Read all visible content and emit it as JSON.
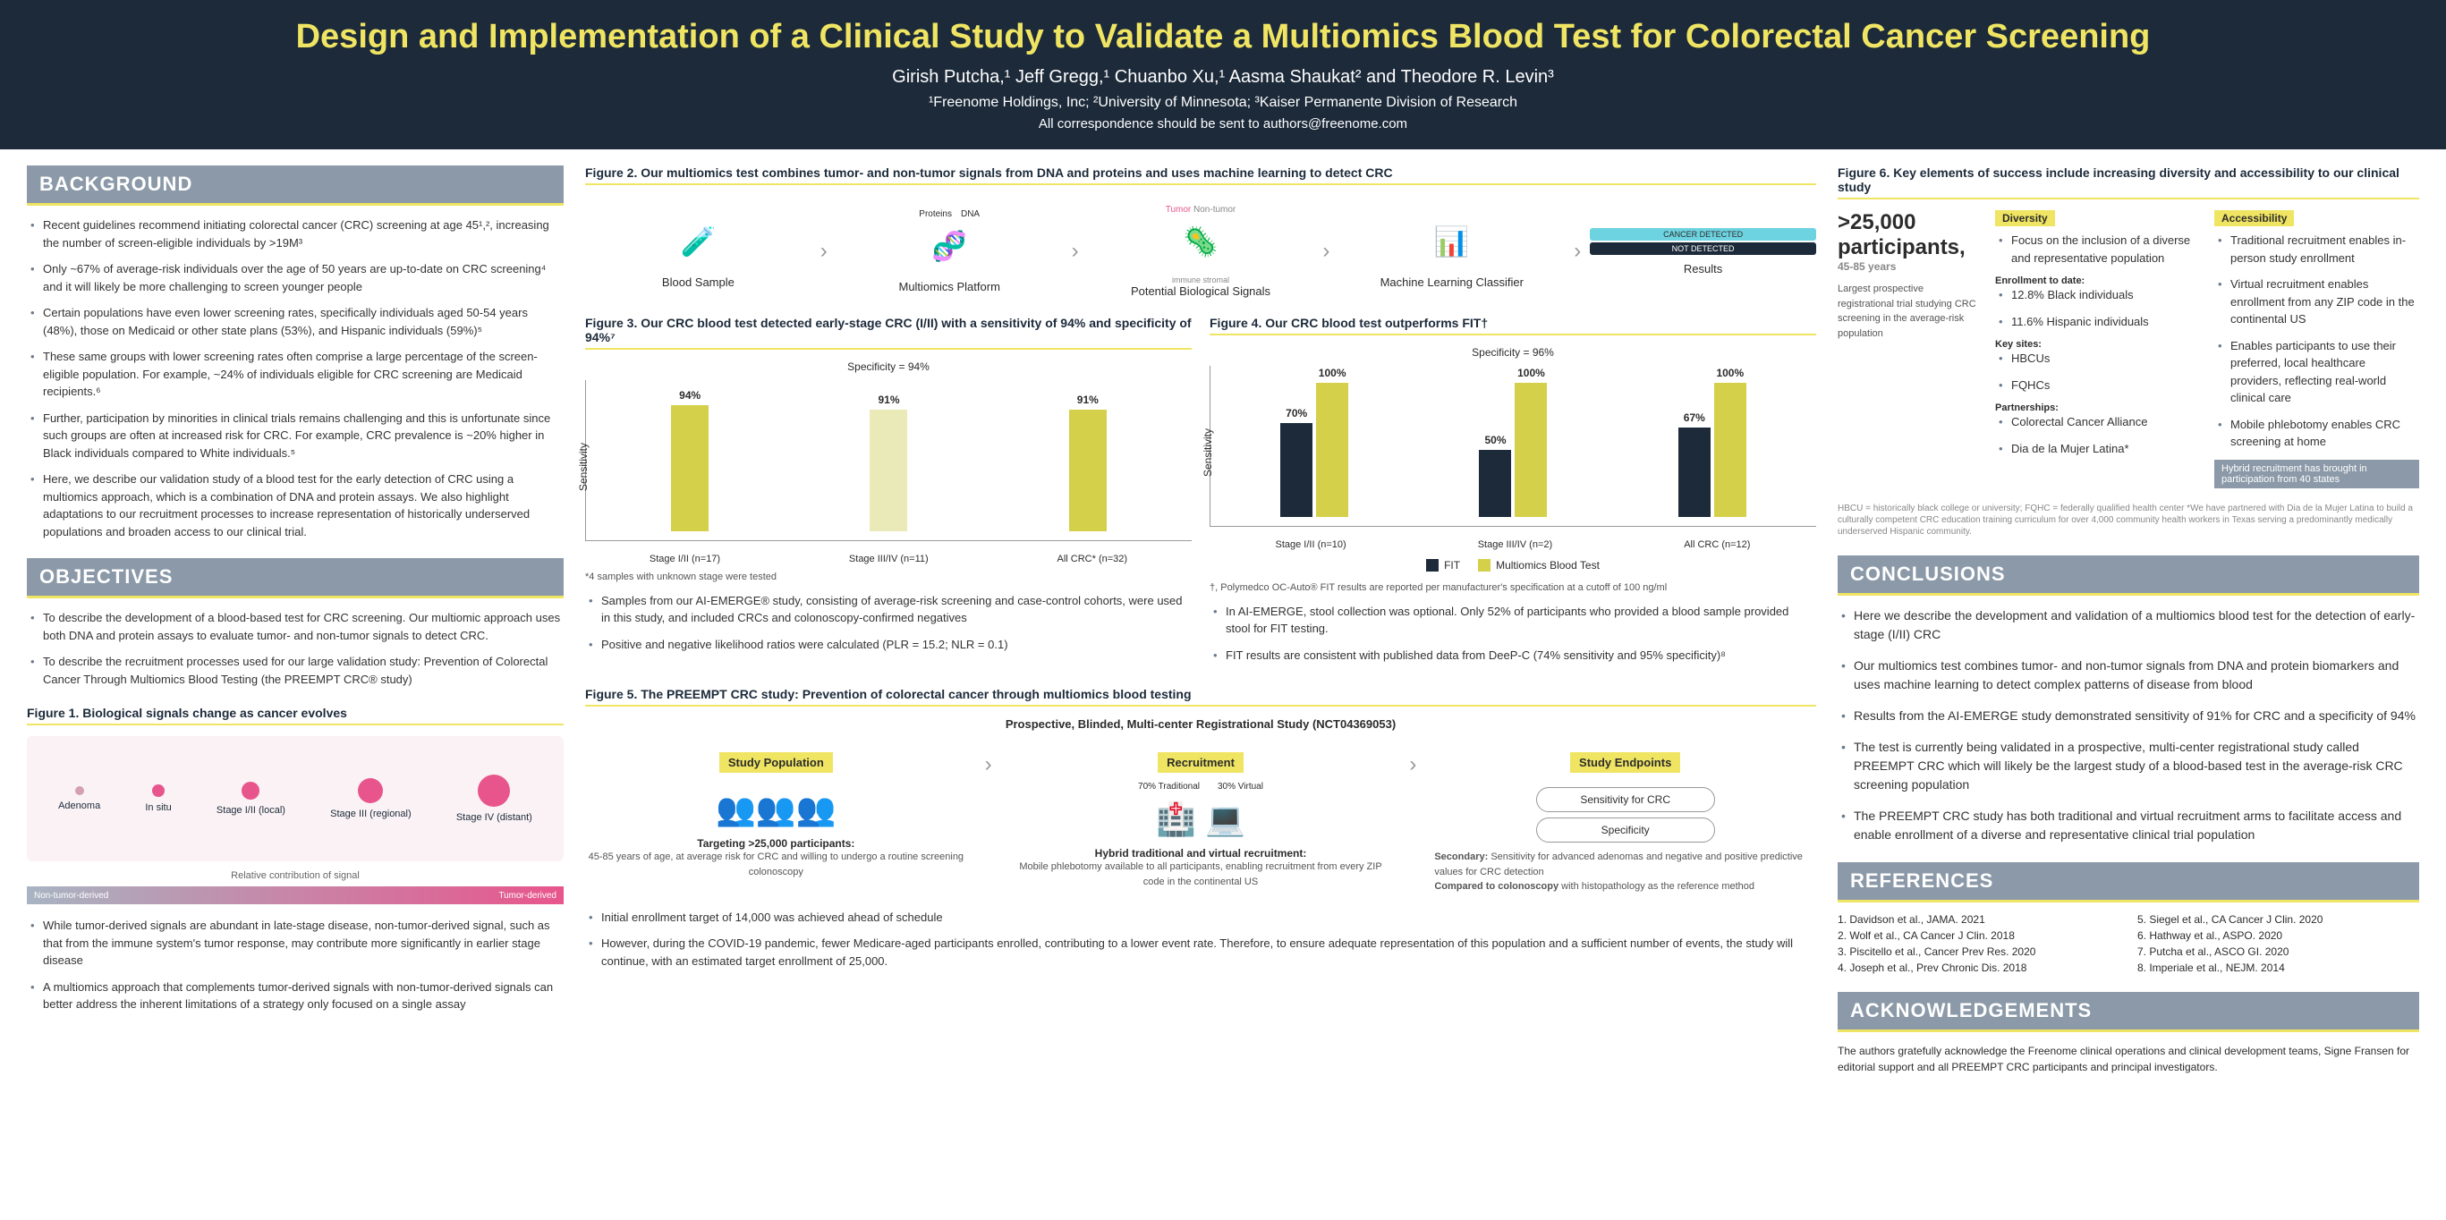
{
  "header": {
    "title": "Design and Implementation of a Clinical Study to Validate a Multiomics Blood Test for Colorectal Cancer Screening",
    "authors": "Girish Putcha,¹ Jeff Gregg,¹ Chuanbo Xu,¹ Aasma Shaukat² and Theodore R. Levin³",
    "affiliations": "¹Freenome Holdings, Inc; ²University of Minnesota; ³Kaiser Permanente Division of Research",
    "correspondence": "All correspondence should be sent to authors@freenome.com"
  },
  "sections": {
    "background": "BACKGROUND",
    "objectives": "OBJECTIVES",
    "conclusions": "CONCLUSIONS",
    "references": "REFERENCES",
    "ack": "ACKNOWLEDGEMENTS"
  },
  "background": [
    "Recent guidelines recommend initiating colorectal cancer (CRC) screening at age 45¹,², increasing the number of screen-eligible individuals by >19M³",
    "Only ~67% of average-risk individuals over the age of 50 years are up-to-date on CRC screening⁴ and it will likely be more challenging to screen younger people",
    "Certain populations have even lower screening rates, specifically individuals aged 50-54 years (48%), those on Medicaid or other state plans (53%), and Hispanic individuals (59%)⁵",
    "These same groups with lower screening rates often comprise a large percentage of the screen-eligible population. For example, ~24% of individuals eligible for CRC screening are Medicaid recipients.⁶",
    "Further, participation by minorities in clinical trials remains challenging and this is unfortunate since such groups are often at increased risk for CRC. For example, CRC prevalence is ~20% higher in Black individuals compared to White individuals.⁵",
    "Here, we describe our validation study of a blood test for the early detection of CRC using a multiomics approach, which is a combination of DNA and protein assays. We also highlight adaptations to our recruitment processes to increase representation of historically underserved populations and broaden access to our clinical trial."
  ],
  "objectives": [
    "To describe the development of a blood-based test for CRC screening. Our multiomic approach uses both DNA and protein assays to evaluate tumor- and non-tumor signals to detect CRC.",
    "To describe the recruitment processes used for our large validation study: Prevention of Colorectal Cancer Through Multiomics Blood Testing (the PREEMPT CRC® study)"
  ],
  "fig1": {
    "title": "Figure 1. Biological signals change as cancer evolves",
    "stages": [
      "Adenoma",
      "In situ",
      "Stage I/II (local)",
      "Stage III (regional)",
      "Stage IV (distant)"
    ],
    "signal_caption": "Relative contribution of signal",
    "non_tumor": "Non-tumor-derived",
    "tumor": "Tumor-derived",
    "notes": [
      "While tumor-derived signals are abundant in late-stage disease, non-tumor-derived signal, such as that from the immune system's tumor response, may contribute more significantly in earlier stage disease",
      "A multiomics approach that complements tumor-derived signals with non-tumor-derived signals can better address the inherent limitations of a strategy only focused on a single assay"
    ]
  },
  "fig2": {
    "title": "Figure 2. Our multiomics test combines tumor- and non-tumor signals from DNA and proteins and uses machine learning to detect CRC",
    "steps": [
      "Blood Sample",
      "Multiomics Platform",
      "Potential Biological Signals",
      "Machine Learning Classifier",
      "Results"
    ],
    "proteins": "Proteins",
    "dna": "DNA",
    "tumor": "Tumor",
    "nontumor": "Non-tumor",
    "immune": "immune",
    "stromal": "stromal",
    "cancer_detected": "CANCER DETECTED",
    "not_detected": "NOT DETECTED"
  },
  "fig3": {
    "title": "Figure 3. Our CRC blood test detected early-stage CRC (I/II) with a sensitivity of 94% and specificity of 94%⁷",
    "spec": "Specificity = 94%",
    "y_label": "Sensitivity",
    "bars": [
      {
        "label": "Stage I/II (n=17)",
        "value": 94,
        "color": "#d4d04a"
      },
      {
        "label": "Stage III/IV (n=11)",
        "value": 91,
        "color": "#eae9b8"
      },
      {
        "label": "All CRC* (n=32)",
        "value": 91,
        "color": "#d4d04a"
      }
    ],
    "footnote": "*4 samples with unknown stage were tested",
    "notes": [
      "Samples from our AI-EMERGE® study, consisting of average-risk screening and case-control cohorts, were used in this study, and included CRCs and colonoscopy-confirmed negatives",
      "Positive and negative likelihood ratios were calculated (PLR = 15.2; NLR = 0.1)"
    ]
  },
  "fig4": {
    "title": "Figure 4. Our CRC blood test outperforms FIT†",
    "spec": "Specificity = 96%",
    "y_label": "Sensitivity",
    "groups": [
      {
        "label": "Stage I/II (n=10)",
        "fit": 70,
        "multi": 100
      },
      {
        "label": "Stage III/IV (n=2)",
        "fit": 50,
        "multi": 100
      },
      {
        "label": "All CRC (n=12)",
        "fit": 67,
        "multi": 100
      }
    ],
    "colors": {
      "fit": "#1c2a3a",
      "multi": "#d4d04a"
    },
    "legend": {
      "fit": "FIT",
      "multi": "Multiomics Blood Test"
    },
    "footnote": "†, Polymedco OC-Auto® FIT results are reported per manufacturer's specification at a cutoff of 100 ng/ml",
    "notes": [
      "In AI-EMERGE, stool collection was optional. Only 52% of participants who provided a blood sample provided stool for FIT testing.",
      "FIT results are consistent with published data from DeeP-C (74% sensitivity and 95% specificity)⁸"
    ]
  },
  "fig5": {
    "title": "Figure 5. The PREEMPT CRC study: Prevention of colorectal cancer through multiomics blood testing",
    "subtitle": "Prospective, Blinded, Multi-center Registrational Study (NCT04369053)",
    "pop_header": "Study Population",
    "pop_title": "Targeting >25,000 participants:",
    "pop_text": "45-85 years of age, at average risk for CRC and willing to undergo a routine screening colonoscopy",
    "rec_header": "Recruitment",
    "rec_trad": "70% Traditional",
    "rec_virt": "30% Virtual",
    "rec_title": "Hybrid traditional and virtual recruitment:",
    "rec_text": "Mobile phlebotomy available to all participants, enabling recruitment from every ZIP code in the continental US",
    "end_header": "Study Endpoints",
    "end_primary1": "Sensitivity for CRC",
    "end_primary2": "Specificity",
    "end_sec_title": "Secondary:",
    "end_sec_text": "Sensitivity for advanced adenomas and negative and positive predictive values for CRC detection",
    "end_comp_title": "Compared to colonoscopy",
    "end_comp_text": "with histopathology as the reference method",
    "notes": [
      "Initial enrollment target of 14,000 was achieved ahead of schedule",
      "However, during the COVID-19 pandemic, fewer Medicare-aged participants enrolled, contributing to a lower event rate. Therefore, to ensure adequate representation of this population and a sufficient number of events, the study will continue, with an estimated target enrollment of 25,000."
    ]
  },
  "fig6": {
    "title": "Figure 6. Key elements of success include increasing diversity and accessibility to our clinical study",
    "participants": ">25,000 participants,",
    "age": "45-85 years",
    "largest": "Largest prospective registrational trial studying CRC screening in the average-risk population",
    "div_header": "Diversity",
    "div_focus": "Focus on the inclusion of a diverse and representative population",
    "enroll_header": "Enrollment to date:",
    "enroll1": "12.8% Black individuals",
    "enroll2": "11.6% Hispanic individuals",
    "sites_header": "Key sites:",
    "site1": "HBCUs",
    "site2": "FQHCs",
    "partners_header": "Partnerships:",
    "partner1": "Colorectal Cancer Alliance",
    "partner2": "Dia de la Mujer Latina*",
    "acc_header": "Accessibility",
    "acc1": "Traditional recruitment enables in-person study enrollment",
    "acc2": "Virtual recruitment enables enrollment from any ZIP code in the continental US",
    "acc3": "Enables participants to use their preferred, local healthcare providers, reflecting real-world clinical care",
    "acc4": "Mobile phlebotomy enables CRC screening at home",
    "hybrid": "Hybrid recruitment has brought in participation from 40 states",
    "footnote": "HBCU = historically black college or university; FQHC = federally qualified health center\n*We have partnered with Dia de la Mujer Latina to build a culturally competent CRC education training curriculum for over 4,000 community health workers in Texas serving a predominantly medically underserved Hispanic community."
  },
  "conclusions": [
    "Here we describe the development and validation of a multiomics blood test for the detection of early-stage (I/II) CRC",
    "Our multiomics test combines tumor- and non-tumor signals from DNA and protein biomarkers and uses machine learning to detect complex patterns of disease from blood",
    "Results from the AI-EMERGE study demonstrated sensitivity of 91% for CRC and a specificity of 94%",
    "The test is currently being validated in a prospective, multi-center registrational study called PREEMPT CRC which will likely be the largest study of a blood-based test in the average-risk CRC screening population",
    "The PREEMPT CRC study has both traditional and virtual recruitment arms to facilitate access and enable enrollment of a diverse and representative clinical trial population"
  ],
  "references": [
    "1. Davidson et al., JAMA. 2021",
    "5. Siegel et al., CA Cancer J Clin. 2020",
    "2. Wolf et al., CA Cancer J Clin. 2018",
    "6. Hathway et al., ASPO. 2020",
    "3. Piscitello et al., Cancer Prev Res. 2020",
    "7. Putcha et al., ASCO GI. 2020",
    "4. Joseph et al., Prev Chronic Dis. 2018",
    "8. Imperiale et al., NEJM. 2014"
  ],
  "ack": "The authors gratefully acknowledge the Freenome clinical operations and clinical development teams, Signe Fransen for editorial support and all PREEMPT CRC participants and principal investigators."
}
